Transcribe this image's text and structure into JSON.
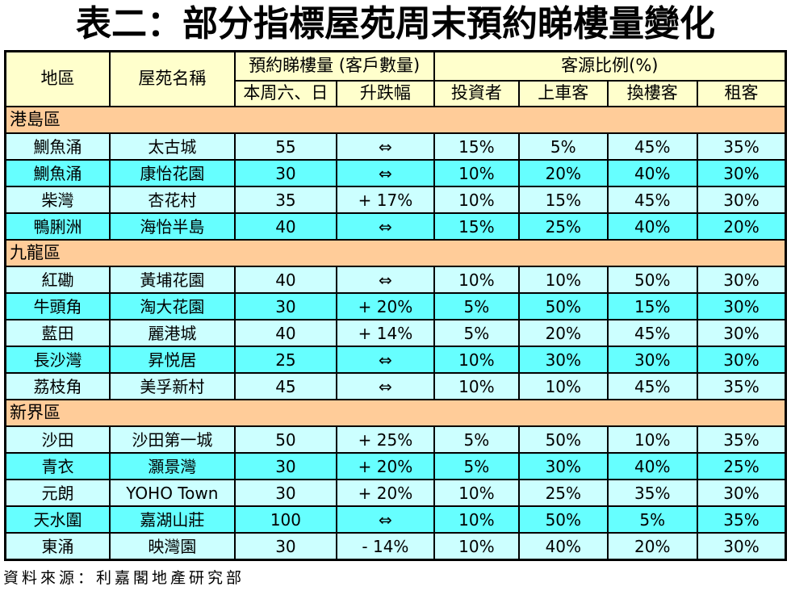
{
  "title": "表二：部分指標屋苑周末預約睇樓量變化",
  "colors": {
    "header_bg": "#FFFFCC",
    "section_bg": "#FFCC99",
    "row_light_bg": "#CCFFFF",
    "row_dark_bg": "#66FFFF",
    "border": "#000000",
    "page_bg": "#FFFFFF"
  },
  "table": {
    "header": {
      "district": "地區",
      "estate": "屋苑名稱",
      "bookings_group": "預約睇樓量 (客戶數量)",
      "source_group": "客源比例(%)",
      "sub": [
        "本周六、日",
        "升跌幅",
        "投資者",
        "上車客",
        "換樓客",
        "租客"
      ]
    },
    "columns": [
      "district",
      "estate",
      "weekend-count",
      "change",
      "investor",
      "first-time-buyer",
      "upgrader",
      "tenant"
    ],
    "sections": [
      {
        "name": "港島區",
        "rows": [
          [
            "鰂魚涌",
            "太古城",
            "55",
            "⇔",
            "15%",
            "5%",
            "45%",
            "35%"
          ],
          [
            "鰂魚涌",
            "康怡花園",
            "30",
            "⇔",
            "10%",
            "20%",
            "40%",
            "30%"
          ],
          [
            "柴灣",
            "杏花村",
            "35",
            "+ 17%",
            "10%",
            "15%",
            "45%",
            "30%"
          ],
          [
            "鴨脷洲",
            "海怡半島",
            "40",
            "⇔",
            "15%",
            "25%",
            "40%",
            "20%"
          ]
        ]
      },
      {
        "name": "九龍區",
        "rows": [
          [
            "紅磡",
            "黃埔花園",
            "40",
            "⇔",
            "10%",
            "10%",
            "50%",
            "30%"
          ],
          [
            "牛頭角",
            "淘大花園",
            "30",
            "+ 20%",
            "5%",
            "50%",
            "15%",
            "30%"
          ],
          [
            "藍田",
            "麗港城",
            "40",
            "+ 14%",
            "5%",
            "20%",
            "45%",
            "30%"
          ],
          [
            "長沙灣",
            "昇悦居",
            "25",
            "⇔",
            "10%",
            "30%",
            "30%",
            "30%"
          ],
          [
            "荔枝角",
            "美孚新村",
            "45",
            "⇔",
            "10%",
            "10%",
            "45%",
            "35%"
          ]
        ]
      },
      {
        "name": "新界區",
        "rows": [
          [
            "沙田",
            "沙田第一城",
            "50",
            "+ 25%",
            "5%",
            "50%",
            "10%",
            "35%"
          ],
          [
            "青衣",
            "灝景灣",
            "30",
            "+ 20%",
            "5%",
            "30%",
            "40%",
            "25%"
          ],
          [
            "元朗",
            "YOHO Town",
            "30",
            "+ 20%",
            "10%",
            "25%",
            "35%",
            "30%"
          ],
          [
            "天水圍",
            "嘉湖山莊",
            "100",
            "⇔",
            "10%",
            "50%",
            "5%",
            "35%"
          ],
          [
            "東涌",
            "映灣園",
            "30",
            "- 14%",
            "10%",
            "40%",
            "20%",
            "30%"
          ]
        ]
      }
    ]
  },
  "footer": {
    "source": "資料來源：利嘉閣地產研究部"
  }
}
